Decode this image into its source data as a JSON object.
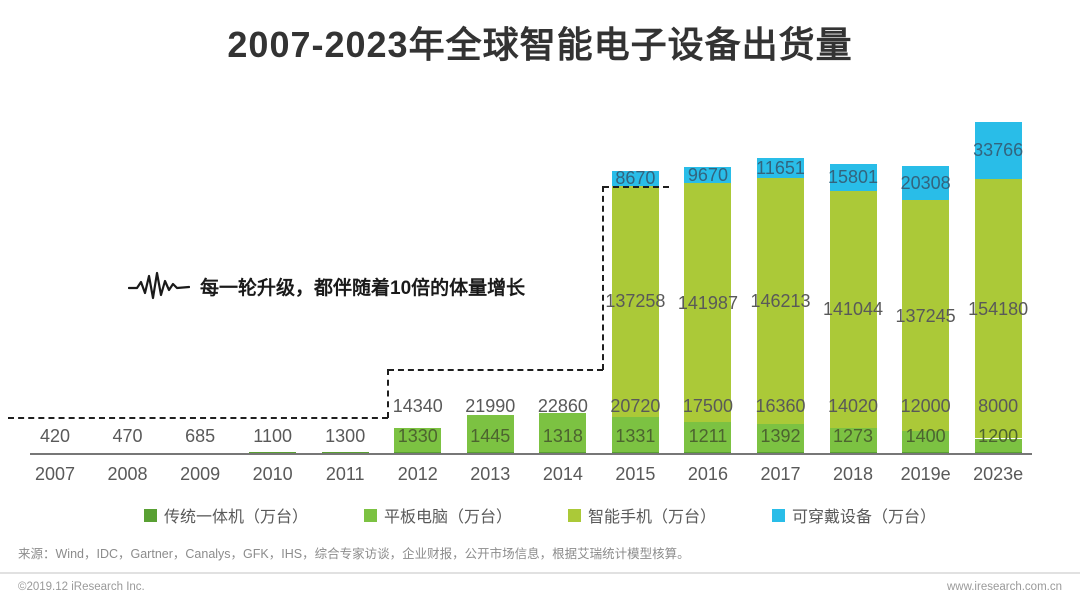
{
  "title": "2007-2023年全球智能电子设备出货量",
  "annotation": {
    "text": "每一轮升级，都伴随着10倍的体量增长"
  },
  "chart_data": {
    "type": "bar",
    "stacked": true,
    "unit": "万台",
    "title": "2007-2023年全球智能电子设备出货量",
    "categories": [
      "2007",
      "2008",
      "2009",
      "2010",
      "2011",
      "2012",
      "2013",
      "2014",
      "2015",
      "2016",
      "2017",
      "2018",
      "2019e",
      "2023e"
    ],
    "series": [
      {
        "name": "传统一体机（万台）",
        "key": "legacy",
        "color": "#59a033",
        "values": [
          420,
          470,
          685,
          1100,
          1300,
          1330,
          1445,
          1318,
          1331,
          1211,
          1392,
          1273,
          1400,
          1200
        ]
      },
      {
        "name": "平板电脑（万台）",
        "key": "tablet",
        "color": "#7cc242",
        "values": [
          null,
          null,
          null,
          null,
          null,
          14340,
          21990,
          22860,
          20720,
          17500,
          16360,
          14020,
          12000,
          8000
        ]
      },
      {
        "name": "智能手机（万台）",
        "key": "smartphone",
        "color": "#abc938",
        "values": [
          null,
          null,
          null,
          null,
          null,
          null,
          null,
          null,
          137258,
          141987,
          146213,
          141044,
          137245,
          154180
        ]
      },
      {
        "name": "可穿戴设备（万台）",
        "key": "wearable",
        "color": "#29bde8",
        "values": [
          null,
          null,
          null,
          null,
          null,
          null,
          null,
          null,
          8670,
          9670,
          11651,
          15801,
          20308,
          33766
        ]
      }
    ],
    "legend_position": "bottom",
    "grid": false,
    "annotations": [
      "每一轮升级，都伴随着10倍的体量增长"
    ]
  },
  "source": {
    "text": "来源：Wind，IDC，Gartner，Canalys，GFK，IHS，综合专家访谈，企业财报，公开市场信息，根据艾瑞统计模型核算。"
  },
  "footer": {
    "left": "©2019.12 iResearch Inc.",
    "right": "www.iresearch.com.cn"
  }
}
